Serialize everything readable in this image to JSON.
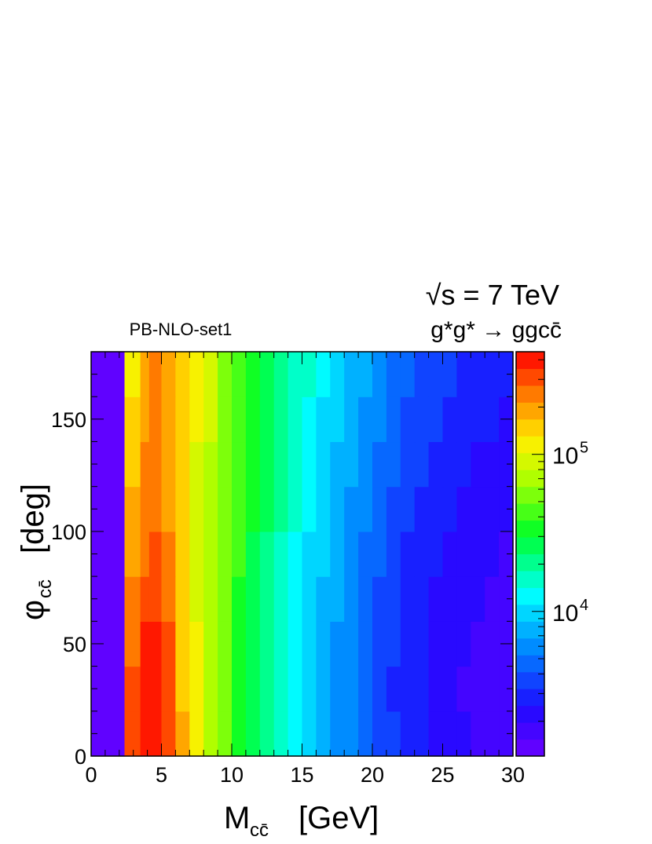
{
  "chart_data": {
    "type": "heatmap",
    "title_energy": "√s = 7 TeV",
    "process": "g*g* → ggcc̄",
    "set_label": "PB-NLO-set1",
    "xlabel": "M",
    "xlabel_sub": "cc̄",
    "xlabel_unit": "[GeV]",
    "ylabel": "φ",
    "ylabel_sub": "cc̄",
    "ylabel_unit": "[deg]",
    "xlim": [
      0,
      30
    ],
    "ylim": [
      0,
      180
    ],
    "x_ticks": [
      0,
      5,
      10,
      15,
      20,
      25,
      30
    ],
    "y_ticks": [
      0,
      50,
      100,
      150
    ],
    "z_scale": "log",
    "zlim": [
      1200,
      450000
    ],
    "z_ticks": [
      {
        "value": 10000,
        "base": "10",
        "exp": "4"
      },
      {
        "value": 100000,
        "base": "10",
        "exp": "5"
      }
    ],
    "x_bin_centers": [
      1.5,
      3.25,
      3.75,
      4.5,
      5.5,
      6.5,
      7.5,
      8.5,
      9.5,
      10.5,
      11.5,
      12.5,
      13.5,
      14.5,
      15.5,
      16.5,
      17.5,
      18.5,
      19.5,
      20.5,
      21.5,
      22.5,
      23.5,
      24.5,
      25.5,
      26.5,
      27.5,
      28.5,
      29.5
    ],
    "y_bin_centers": [
      10,
      30,
      50,
      70,
      90,
      110,
      130,
      150,
      170
    ],
    "z_values": [
      [
        1200,
        300000,
        420000,
        450000,
        300000,
        170000,
        110000,
        75000,
        52000,
        38000,
        28000,
        21000,
        16000,
        12000,
        9500,
        8000,
        6500,
        5500,
        4500,
        3800,
        3300,
        3000,
        2700,
        2400,
        2200,
        2000,
        1900,
        1800,
        1700
      ],
      [
        1200,
        280000,
        400000,
        430000,
        290000,
        160000,
        105000,
        72000,
        50000,
        37000,
        27000,
        20500,
        15500,
        11800,
        9400,
        7900,
        6400,
        5400,
        4400,
        3700,
        3200,
        2900,
        2600,
        2300,
        2100,
        1900,
        1800,
        1700,
        1600
      ],
      [
        1200,
        260000,
        380000,
        420000,
        280000,
        160000,
        104000,
        72000,
        50000,
        37000,
        27500,
        20800,
        15800,
        12000,
        9600,
        8000,
        6500,
        5500,
        4500,
        3800,
        3300,
        3000,
        2700,
        2400,
        2200,
        2000,
        1900,
        1800,
        1700
      ],
      [
        1200,
        220000,
        320000,
        350000,
        260000,
        150000,
        102000,
        72000,
        51000,
        38000,
        28500,
        21500,
        16500,
        12500,
        10000,
        8300,
        6800,
        5700,
        4700,
        4000,
        3400,
        3100,
        2800,
        2500,
        2300,
        2100,
        2000,
        1900,
        1800
      ],
      [
        1200,
        190000,
        270000,
        300000,
        230000,
        145000,
        100000,
        73000,
        52000,
        39000,
        29500,
        22500,
        17500,
        13300,
        10500,
        8800,
        7200,
        6000,
        5000,
        4200,
        3600,
        3200,
        2900,
        2600,
        2400,
        2200,
        2100,
        2000,
        1900
      ],
      [
        1200,
        170000,
        240000,
        270000,
        210000,
        140000,
        100000,
        74000,
        54000,
        41000,
        31000,
        24000,
        18500,
        14200,
        11200,
        9300,
        7700,
        6400,
        5300,
        4500,
        3900,
        3400,
        3100,
        2800,
        2600,
        2400,
        2300,
        2200,
        2100
      ],
      [
        1200,
        150000,
        220000,
        250000,
        200000,
        140000,
        102000,
        76000,
        57000,
        43000,
        33000,
        25500,
        20000,
        15500,
        12200,
        10000,
        8300,
        6900,
        5800,
        4900,
        4200,
        3700,
        3300,
        3000,
        2800,
        2600,
        2500,
        2400,
        2300
      ],
      [
        1200,
        140000,
        210000,
        240000,
        200000,
        142000,
        105000,
        80000,
        60000,
        46000,
        35500,
        27500,
        21500,
        16800,
        13200,
        11000,
        9100,
        7600,
        6400,
        5400,
        4700,
        4100,
        3700,
        3400,
        3100,
        2900,
        2700,
        2600,
        2500
      ],
      [
        1200,
        130000,
        200000,
        235000,
        200000,
        145000,
        108000,
        82000,
        62000,
        48000,
        37000,
        29000,
        23000,
        18000,
        14200,
        11800,
        9800,
        8200,
        6900,
        5900,
        5100,
        4500,
        4100,
        3700,
        3400,
        3200,
        3000,
        2800,
        2700
      ]
    ],
    "grid": false,
    "colorbar": "right"
  }
}
